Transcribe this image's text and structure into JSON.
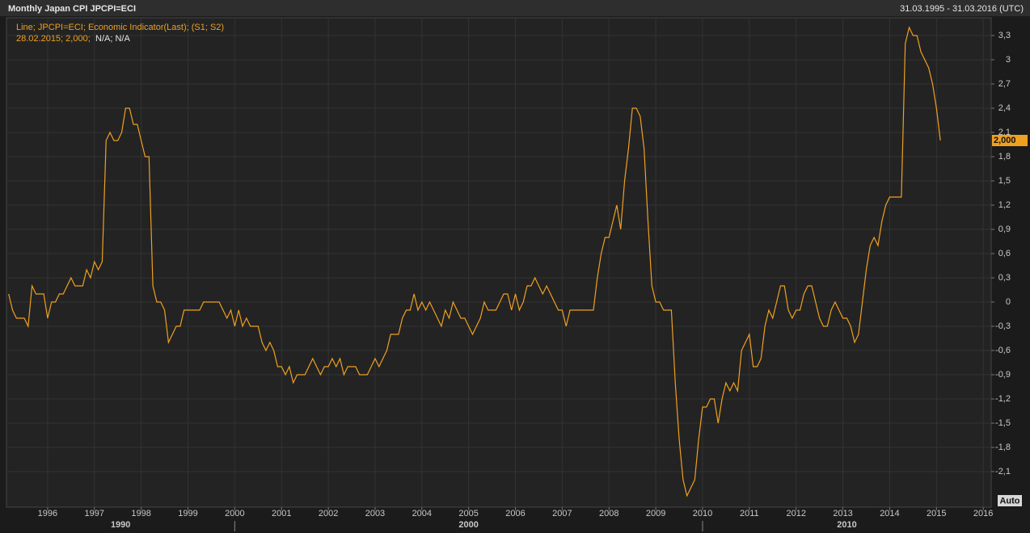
{
  "chart_data": {
    "type": "line",
    "title": "Monthly Japan CPI JPCPI=ECI",
    "date_range": "31.03.1995 - 31.03.2016 (UTC)",
    "legend_detail": "28.02.2015; 2,000;",
    "legend_extra": "N/A; N/A",
    "last_label": "2,000",
    "auto_button": "Auto",
    "decades": [
      "1990",
      "2000",
      "2010"
    ],
    "xlim": [
      1995.12,
      2016.17
    ],
    "xticks": [
      1996,
      1997,
      1998,
      1999,
      2000,
      2001,
      2002,
      2003,
      2004,
      2005,
      2006,
      2007,
      2008,
      2009,
      2010,
      2011,
      2012,
      2013,
      2014,
      2015,
      2016
    ],
    "ylim": [
      -2.54,
      3.52
    ],
    "yticks": [
      {
        "value": -2.1,
        "label": "-2,1"
      },
      {
        "value": -1.8,
        "label": "-1,8"
      },
      {
        "value": -1.5,
        "label": "-1,5"
      },
      {
        "value": -1.2,
        "label": "-1,2"
      },
      {
        "value": -0.9,
        "label": "-0,9"
      },
      {
        "value": -0.6,
        "label": "-0,6"
      },
      {
        "value": -0.3,
        "label": "-0,3"
      },
      0,
      {
        "value": 0.3,
        "label": "0,3"
      },
      {
        "value": 0.6,
        "label": "0,6"
      },
      {
        "value": 0.9,
        "label": "0,9"
      },
      {
        "value": 1.2,
        "label": "1,2"
      },
      {
        "value": 1.5,
        "label": "1,5"
      },
      {
        "value": 1.8,
        "label": "1,8"
      },
      {
        "value": 2.1,
        "label": "2,1"
      },
      {
        "value": 2.4,
        "label": "2,4"
      },
      {
        "value": 2.7,
        "label": "2,7"
      },
      3,
      {
        "value": 3.3,
        "label": "3,3"
      }
    ],
    "grid": true,
    "x": [
      "1995-03",
      "1995-04",
      "1995-05",
      "1995-06",
      "1995-07",
      "1995-08",
      "1995-09",
      "1995-10",
      "1995-11",
      "1995-12",
      "1996-01",
      "1996-02",
      "1996-03",
      "1996-04",
      "1996-05",
      "1996-06",
      "1996-07",
      "1996-08",
      "1996-09",
      "1996-10",
      "1996-11",
      "1996-12",
      "1997-01",
      "1997-02",
      "1997-03",
      "1997-04",
      "1997-05",
      "1997-06",
      "1997-07",
      "1997-08",
      "1997-09",
      "1997-10",
      "1997-11",
      "1997-12",
      "1998-01",
      "1998-02",
      "1998-03",
      "1998-04",
      "1998-05",
      "1998-06",
      "1998-07",
      "1998-08",
      "1998-09",
      "1998-10",
      "1998-11",
      "1998-12",
      "1999-01",
      "1999-02",
      "1999-03",
      "1999-04",
      "1999-05",
      "1999-06",
      "1999-07",
      "1999-08",
      "1999-09",
      "1999-10",
      "1999-11",
      "1999-12",
      "2000-01",
      "2000-02",
      "2000-03",
      "2000-04",
      "2000-05",
      "2000-06",
      "2000-07",
      "2000-08",
      "2000-09",
      "2000-10",
      "2000-11",
      "2000-12",
      "2001-01",
      "2001-02",
      "2001-03",
      "2001-04",
      "2001-05",
      "2001-06",
      "2001-07",
      "2001-08",
      "2001-09",
      "2001-10",
      "2001-11",
      "2001-12",
      "2002-01",
      "2002-02",
      "2002-03",
      "2002-04",
      "2002-05",
      "2002-06",
      "2002-07",
      "2002-08",
      "2002-09",
      "2002-10",
      "2002-11",
      "2002-12",
      "2003-01",
      "2003-02",
      "2003-03",
      "2003-04",
      "2003-05",
      "2003-06",
      "2003-07",
      "2003-08",
      "2003-09",
      "2003-10",
      "2003-11",
      "2003-12",
      "2004-01",
      "2004-02",
      "2004-03",
      "2004-04",
      "2004-05",
      "2004-06",
      "2004-07",
      "2004-08",
      "2004-09",
      "2004-10",
      "2004-11",
      "2004-12",
      "2005-01",
      "2005-02",
      "2005-03",
      "2005-04",
      "2005-05",
      "2005-06",
      "2005-07",
      "2005-08",
      "2005-09",
      "2005-10",
      "2005-11",
      "2005-12",
      "2006-01",
      "2006-02",
      "2006-03",
      "2006-04",
      "2006-05",
      "2006-06",
      "2006-07",
      "2006-08",
      "2006-09",
      "2006-10",
      "2006-11",
      "2006-12",
      "2007-01",
      "2007-02",
      "2007-03",
      "2007-04",
      "2007-05",
      "2007-06",
      "2007-07",
      "2007-08",
      "2007-09",
      "2007-10",
      "2007-11",
      "2007-12",
      "2008-01",
      "2008-02",
      "2008-03",
      "2008-04",
      "2008-05",
      "2008-06",
      "2008-07",
      "2008-08",
      "2008-09",
      "2008-10",
      "2008-11",
      "2008-12",
      "2009-01",
      "2009-02",
      "2009-03",
      "2009-04",
      "2009-05",
      "2009-06",
      "2009-07",
      "2009-08",
      "2009-09",
      "2009-10",
      "2009-11",
      "2009-12",
      "2010-01",
      "2010-02",
      "2010-03",
      "2010-04",
      "2010-05",
      "2010-06",
      "2010-07",
      "2010-08",
      "2010-09",
      "2010-10",
      "2010-11",
      "2010-12",
      "2011-01",
      "2011-02",
      "2011-03",
      "2011-04",
      "2011-05",
      "2011-06",
      "2011-07",
      "2011-08",
      "2011-09",
      "2011-10",
      "2011-11",
      "2011-12",
      "2012-01",
      "2012-02",
      "2012-03",
      "2012-04",
      "2012-05",
      "2012-06",
      "2012-07",
      "2012-08",
      "2012-09",
      "2012-10",
      "2012-11",
      "2012-12",
      "2013-01",
      "2013-02",
      "2013-03",
      "2013-04",
      "2013-05",
      "2013-06",
      "2013-07",
      "2013-08",
      "2013-09",
      "2013-10",
      "2013-11",
      "2013-12",
      "2014-01",
      "2014-02",
      "2014-03",
      "2014-04",
      "2014-05",
      "2014-06",
      "2014-07",
      "2014-08",
      "2014-09",
      "2014-10",
      "2014-11",
      "2014-12",
      "2015-01",
      "2015-02"
    ],
    "series": [
      {
        "name": "Line; JPCPI=ECI; Economic Indicator(Last); (S1; S2)",
        "color": "#f0a020",
        "values": [
          0.1,
          -0.1,
          -0.2,
          -0.2,
          -0.2,
          -0.3,
          0.2,
          0.1,
          0.1,
          0.1,
          -0.2,
          0,
          0,
          0.1,
          0.1,
          0.2,
          0.3,
          0.2,
          0.2,
          0.2,
          0.4,
          0.3,
          0.5,
          0.4,
          0.5,
          2.0,
          2.1,
          2.0,
          2.0,
          2.1,
          2.4,
          2.4,
          2.2,
          2.2,
          2.0,
          1.8,
          1.8,
          0.2,
          0,
          0,
          -0.1,
          -0.5,
          -0.4,
          -0.3,
          -0.3,
          -0.1,
          -0.1,
          -0.1,
          -0.1,
          -0.1,
          0,
          0,
          0,
          0,
          0,
          -0.1,
          -0.2,
          -0.1,
          -0.3,
          -0.1,
          -0.3,
          -0.2,
          -0.3,
          -0.3,
          -0.3,
          -0.5,
          -0.6,
          -0.5,
          -0.6,
          -0.8,
          -0.8,
          -0.9,
          -0.8,
          -1.0,
          -0.9,
          -0.9,
          -0.9,
          -0.8,
          -0.7,
          -0.8,
          -0.9,
          -0.8,
          -0.8,
          -0.7,
          -0.8,
          -0.7,
          -0.9,
          -0.8,
          -0.8,
          -0.8,
          -0.9,
          -0.9,
          -0.9,
          -0.8,
          -0.7,
          -0.8,
          -0.7,
          -0.6,
          -0.4,
          -0.4,
          -0.4,
          -0.2,
          -0.1,
          -0.1,
          0.1,
          -0.1,
          0,
          -0.1,
          0,
          -0.1,
          -0.2,
          -0.3,
          -0.1,
          -0.2,
          0,
          -0.1,
          -0.2,
          -0.2,
          -0.3,
          -0.4,
          -0.3,
          -0.2,
          0,
          -0.1,
          -0.1,
          -0.1,
          0,
          0.1,
          0.1,
          -0.1,
          0.1,
          -0.1,
          0,
          0.2,
          0.2,
          0.3,
          0.2,
          0.1,
          0.2,
          0.1,
          0,
          -0.1,
          -0.1,
          -0.3,
          -0.1,
          -0.1,
          -0.1,
          -0.1,
          -0.1,
          -0.1,
          -0.1,
          0.3,
          0.6,
          0.8,
          0.8,
          1.0,
          1.2,
          0.9,
          1.5,
          1.9,
          2.4,
          2.4,
          2.3,
          1.9,
          1.0,
          0.2,
          0,
          0,
          -0.1,
          -0.1,
          -0.1,
          -1.0,
          -1.7,
          -2.2,
          -2.4,
          -2.3,
          -2.2,
          -1.7,
          -1.3,
          -1.3,
          -1.2,
          -1.2,
          -1.5,
          -1.2,
          -1.0,
          -1.1,
          -1.0,
          -1.1,
          -0.6,
          -0.5,
          -0.4,
          -0.8,
          -0.8,
          -0.7,
          -0.3,
          -0.1,
          -0.2,
          0,
          0.2,
          0.2,
          -0.1,
          -0.2,
          -0.1,
          -0.1,
          0.1,
          0.2,
          0.2,
          0,
          -0.2,
          -0.3,
          -0.3,
          -0.1,
          0,
          -0.1,
          -0.2,
          -0.2,
          -0.3,
          -0.5,
          -0.4,
          0,
          0.4,
          0.7,
          0.8,
          0.7,
          1.0,
          1.2,
          1.3,
          1.3,
          1.3,
          1.3,
          3.2,
          3.4,
          3.3,
          3.3,
          3.1,
          3.0,
          2.9,
          2.7,
          2.4,
          2.0
        ]
      }
    ]
  }
}
